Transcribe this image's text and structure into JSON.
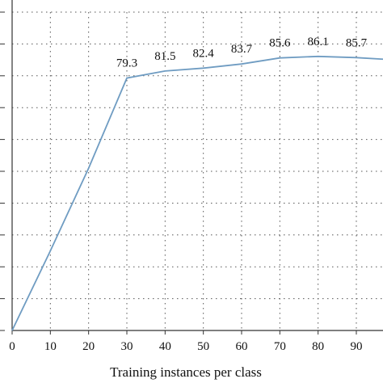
{
  "chart_data": {
    "type": "line",
    "title": "",
    "xlabel": "Training instances per class",
    "ylabel": "",
    "x": [
      0,
      10,
      20,
      30,
      40,
      50,
      60,
      70,
      80,
      90,
      100
    ],
    "y": [
      0,
      25,
      51,
      79.3,
      81.5,
      82.4,
      83.7,
      85.6,
      86.1,
      85.7,
      85.0
    ],
    "data_labels": [
      {
        "x": 30,
        "text": "79.3"
      },
      {
        "x": 40,
        "text": "81.5"
      },
      {
        "x": 50,
        "text": "82.4"
      },
      {
        "x": 60,
        "text": "83.7"
      },
      {
        "x": 70,
        "text": "85.6"
      },
      {
        "x": 80,
        "text": "86.1"
      },
      {
        "x": 90,
        "text": "85.7"
      }
    ],
    "x_ticks": [
      "0",
      "10",
      "20",
      "30",
      "40",
      "50",
      "60",
      "70",
      "80",
      "90"
    ],
    "y_gridlines": [
      0,
      10,
      20,
      30,
      40,
      50,
      60,
      70,
      80,
      90,
      100
    ],
    "xlim": [
      0,
      100
    ],
    "ylim": [
      0,
      100
    ],
    "grid": true,
    "grid_style": "dotted",
    "line_color": "#6f9cc2",
    "axis_color": "#333333"
  }
}
